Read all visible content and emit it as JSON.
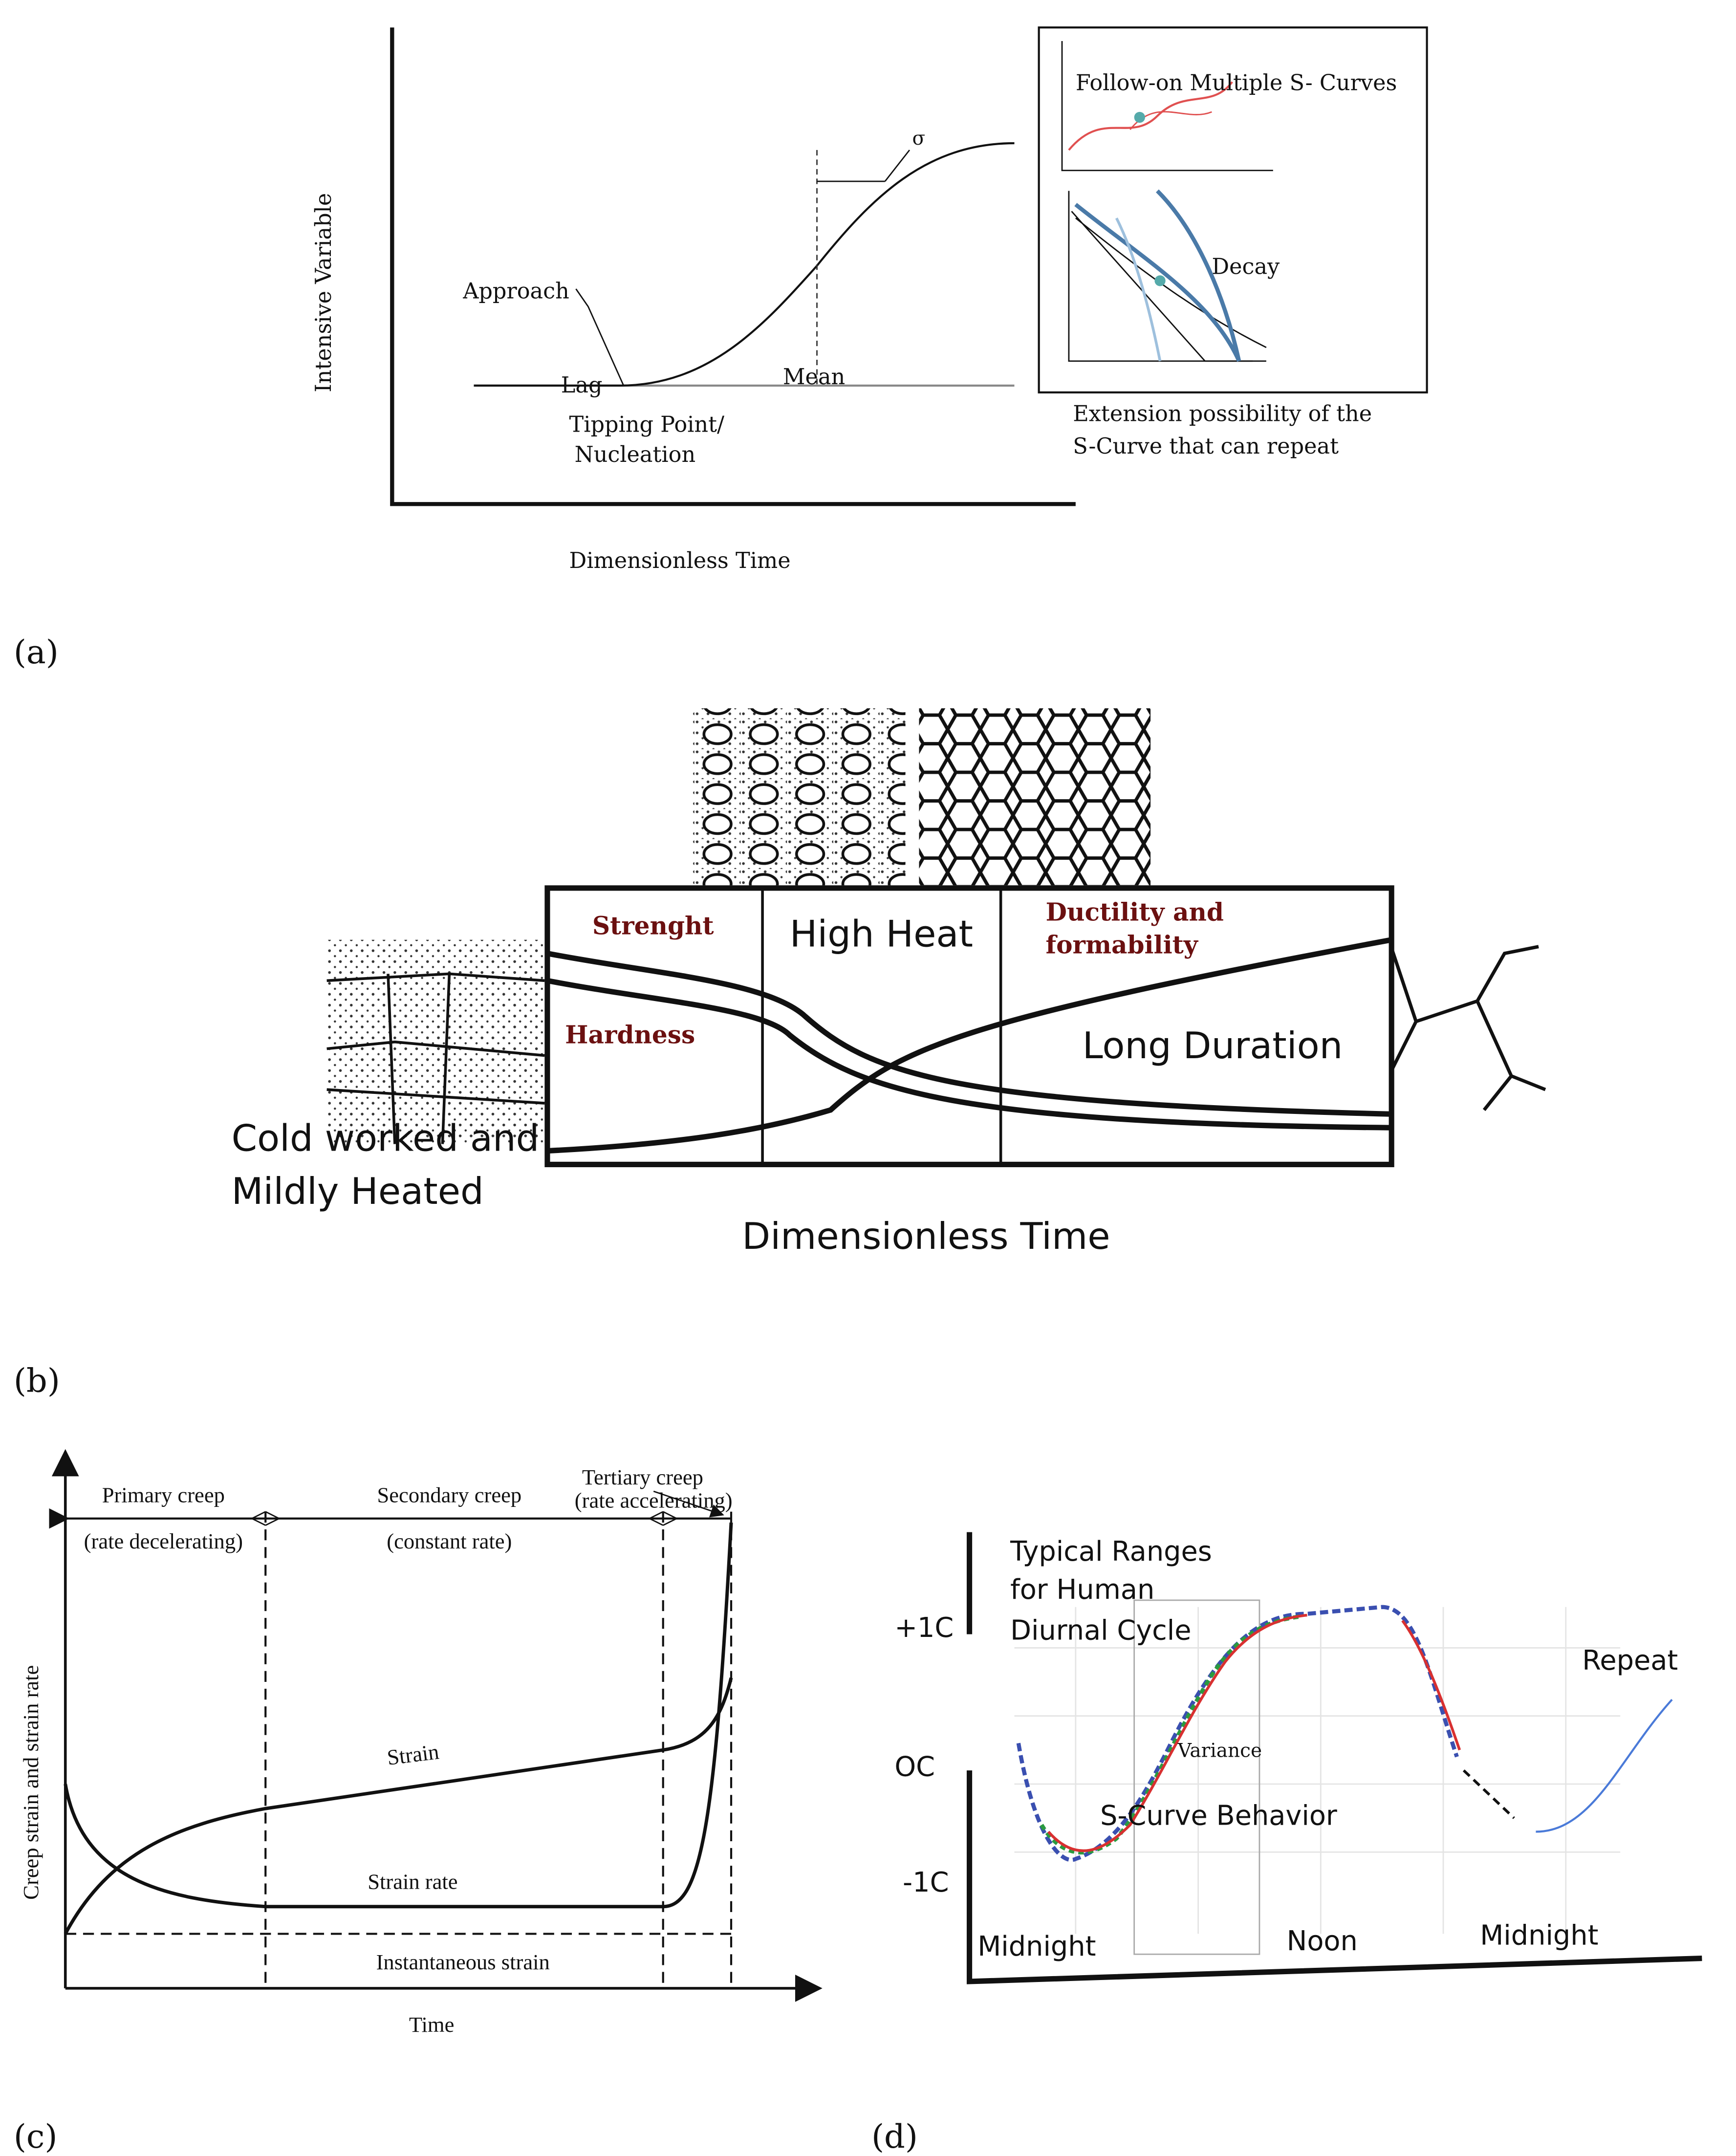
{
  "panels": [
    {
      "label": "(a)",
      "y_axis": "Intensive Variable",
      "x_axis": "Dimensionless Time",
      "sigma": "σ",
      "approach": "Approach",
      "lag": "Lag",
      "mean": "Mean",
      "tipping": [
        "Tipping Point/",
        "Nucleation"
      ],
      "inset_title": "Follow-on Multiple S- Curves",
      "inset_decay": "Decay",
      "extension": [
        "Extension possibility of the",
        "S-Curve that can repeat"
      ]
    },
    {
      "label": "(b)",
      "strength": "Strenght",
      "high_heat": "High Heat",
      "ductility": [
        "Ductility and",
        "formability"
      ],
      "hardness": "Hardness",
      "long_duration": "Long Duration",
      "cold_worked": [
        "Cold worked and",
        "Mildly Heated"
      ],
      "x_axis": "Dimensionless Time"
    },
    {
      "label": "(c)",
      "tertiary": [
        "Tertiary creep",
        "(rate accelerating)"
      ],
      "primary": [
        "Primary creep",
        "(rate decelerating)"
      ],
      "secondary": [
        "Secondary creep",
        "(constant rate)"
      ],
      "strain": "Strain",
      "strain_rate": "Strain rate",
      "instantaneous": "Instantaneous strain",
      "y_axis": "Creep strain and strain rate",
      "x_axis": "Time"
    },
    {
      "label": "(d)",
      "title": [
        "Typical Ranges",
        "for Human",
        "Diurnal Cycle"
      ],
      "y_labels": [
        "+1C",
        "OC",
        "-1C"
      ],
      "variance": "Variance",
      "s_curve": "S-Curve Behavior",
      "repeat": "Repeat",
      "x_labels": [
        "Midnight",
        "Noon",
        "Midnight"
      ]
    }
  ]
}
